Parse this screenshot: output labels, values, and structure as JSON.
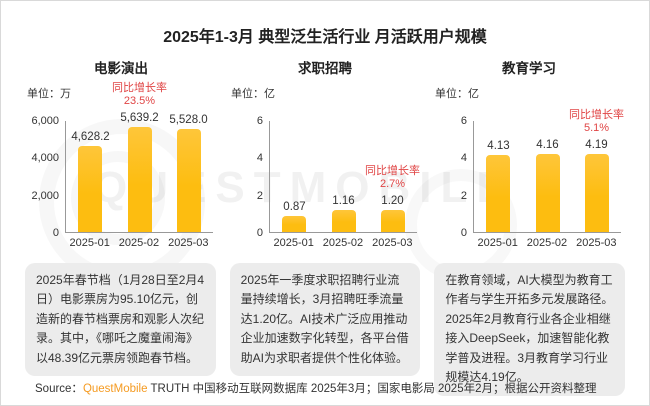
{
  "title": "2025年1-3月 典型泛生活行业 月活跃用户规模",
  "watermark_text": "QUESTMOBILE",
  "colors": {
    "bar": "#FDBD10",
    "growth_red": "#E04545",
    "brand_orange": "#F59B22",
    "note_bg": "#ECECEC"
  },
  "chart_data": [
    {
      "type": "bar",
      "title": "电影演出",
      "unit_label": "单位：万",
      "categories": [
        "2025-01",
        "2025-02",
        "2025-03"
      ],
      "values": [
        4628.2,
        5639.2,
        5528.0
      ],
      "value_labels": [
        "4,628.2",
        "5,639.2",
        "5,528.0"
      ],
      "ylim": [
        0,
        6000
      ],
      "yticks": [
        "0",
        "2,000",
        "4,000",
        "6,000"
      ],
      "growth_label": "同比增长率",
      "growth_value": "23.5%",
      "growth_bar_index": 1,
      "legend": "none",
      "grid": "off"
    },
    {
      "type": "bar",
      "title": "求职招聘",
      "unit_label": "单位：亿",
      "categories": [
        "2025-01",
        "2025-02",
        "2025-03"
      ],
      "values": [
        0.87,
        1.16,
        1.2
      ],
      "value_labels": [
        "0.87",
        "1.16",
        "1.20"
      ],
      "ylim": [
        0,
        6
      ],
      "yticks": [
        "0",
        "2",
        "4",
        "6"
      ],
      "growth_label": "同比增长率",
      "growth_value": "2.7%",
      "growth_bar_index": 2,
      "legend": "none",
      "grid": "off"
    },
    {
      "type": "bar",
      "title": "教育学习",
      "unit_label": "单位：亿",
      "categories": [
        "2025-01",
        "2025-02",
        "2025-03"
      ],
      "values": [
        4.13,
        4.16,
        4.19
      ],
      "value_labels": [
        "4.13",
        "4.16",
        "4.19"
      ],
      "ylim": [
        0,
        6
      ],
      "yticks": [
        "0",
        "2",
        "4",
        "6"
      ],
      "growth_label": "同比增长率",
      "growth_value": "5.1%",
      "growth_bar_index": 2,
      "legend": "none",
      "grid": "off"
    }
  ],
  "notes": [
    "2025年春节档（1月28日至2月4日）电影票房为95.10亿元，创造新的春节档票房和观影人次纪录。其中，《哪吒之魔童闹海》以48.39亿元票房领跑春节档。",
    "2025年一季度求职招聘行业流量持续增长，3月招聘旺季流量达1.20亿。AI技术广泛应用推动企业加速数字化转型，各平台借助AI为求职者提供个性化体验。",
    "在教育领域，AI大模型为教育工作者与学生开拓多元发展路径。2025年2月教育行业各企业相继接入DeepSeek，加速智能化教学普及进程。3月教育学习行业规模达4.19亿。"
  ],
  "footer": {
    "source_label": "Source：",
    "brand": "QuestMobile",
    "text": " TRUTH 中国移动互联网数据库 2025年3月；国家电影局 2025年2月；根据公开资料整理"
  }
}
